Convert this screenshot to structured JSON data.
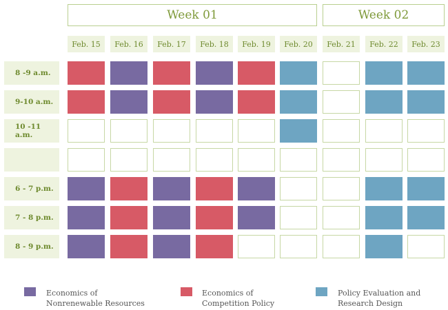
{
  "weeks": [
    {
      "label": "Week 01",
      "start_col": 0,
      "span": 6
    },
    {
      "label": "Week 02",
      "start_col": 6,
      "span": 3
    }
  ],
  "dates": [
    "Feb. 15",
    "Feb. 16",
    "Feb. 17",
    "Feb. 18",
    "Feb. 19",
    "Feb. 20",
    "Feb. 21",
    "Feb. 22",
    "Feb. 23"
  ],
  "time_slots": [
    "8 -9 a.m.",
    "9-10 a.m.",
    "10 -11 a.m.",
    "",
    "6 - 7 p.m.",
    "7 - 8 p.m.",
    "8 - 9 p.m."
  ],
  "courses": {
    "N": {
      "name": "Economics of\nNonrenewable Resources",
      "color": "#786aa1"
    },
    "C": {
      "name": "Economics of\nCompetition Policy",
      "color": "#d75a66"
    },
    "P": {
      "name": "Policy Evaluation and\nResearch Design",
      "color": "#6ea5c2"
    }
  },
  "schedule": [
    [
      "C",
      "N",
      "C",
      "N",
      "C",
      "P",
      "",
      "P",
      "P"
    ],
    [
      "C",
      "N",
      "C",
      "N",
      "C",
      "P",
      "",
      "P",
      "P"
    ],
    [
      "",
      "",
      "",
      "",
      "",
      "P",
      "",
      "",
      ""
    ],
    [
      "",
      "",
      "",
      "",
      "",
      "",
      "",
      "",
      ""
    ],
    [
      "N",
      "C",
      "N",
      "C",
      "N",
      "",
      "",
      "P",
      "P"
    ],
    [
      "N",
      "C",
      "N",
      "C",
      "N",
      "",
      "",
      "P",
      "P"
    ],
    [
      "N",
      "C",
      "N",
      "C",
      "",
      "",
      "",
      "P",
      ""
    ]
  ],
  "legend_order": [
    "N",
    "C",
    "P"
  ]
}
